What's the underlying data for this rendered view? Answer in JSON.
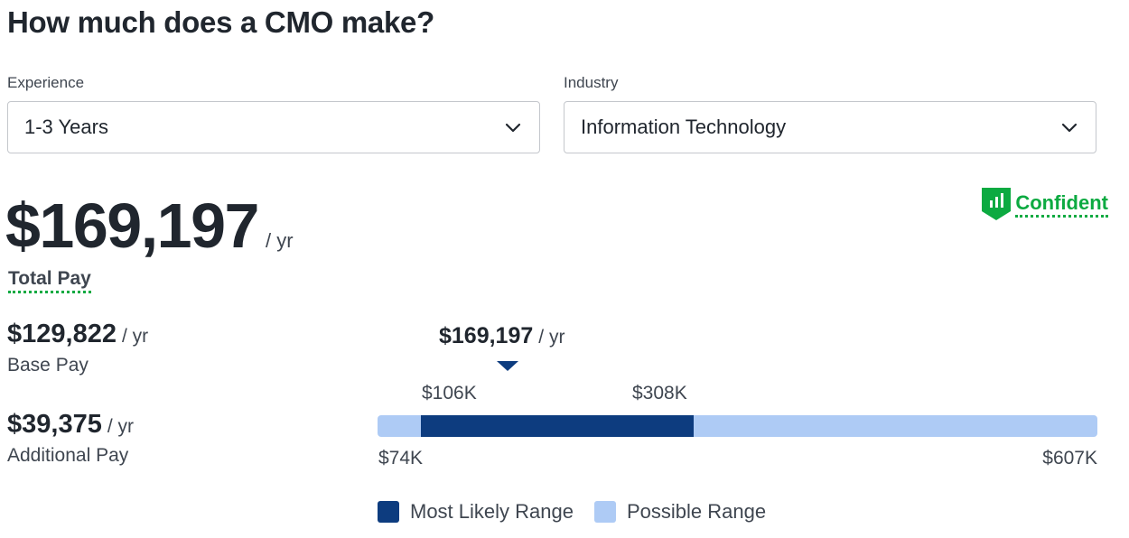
{
  "title": "How much does a CMO make?",
  "filters": {
    "experience": {
      "label": "Experience",
      "value": "1-3 Years"
    },
    "industry": {
      "label": "Industry",
      "value": "Information Technology"
    }
  },
  "total_pay": {
    "amount": "$169,197",
    "unit": "/ yr",
    "label": "Total Pay"
  },
  "confidence": {
    "label": "Confident",
    "color": "#0caa41"
  },
  "base_pay": {
    "amount": "$129,822",
    "unit": "/ yr",
    "label": "Base Pay"
  },
  "additional_pay": {
    "amount": "$39,375",
    "unit": "/ yr",
    "label": "Additional Pay"
  },
  "range": {
    "marker_amount": "$169,197",
    "marker_unit": "/ yr",
    "likely_low_label": "$106K",
    "likely_high_label": "$308K",
    "possible_low_label": "$74K",
    "possible_high_label": "$607K",
    "possible_low": 74,
    "possible_high": 607,
    "likely_low": 106,
    "likely_high": 308,
    "median": 169.197,
    "colors": {
      "likely": "#0d3c7f",
      "possible": "#aecbf5"
    }
  },
  "legend": {
    "likely": "Most Likely Range",
    "possible": "Possible Range"
  }
}
